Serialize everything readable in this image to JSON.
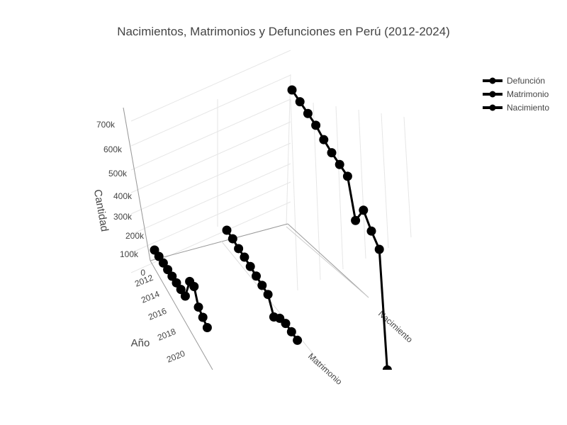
{
  "chart_data": {
    "type": "line",
    "subtype": "3d-scatter-lines",
    "title": "Nacimientos, Matrimonios y Defunciones en Perú (2012-2024)",
    "xlabel": "Año",
    "ylabel": "",
    "zlabel": "Cantidad",
    "x_ticks": [
      "2012",
      "2014",
      "2016",
      "2018",
      "2020"
    ],
    "y_categories": [
      "Matrimonio",
      "Nacimiento"
    ],
    "z_ticks": [
      "0",
      "100k",
      "200k",
      "300k",
      "400k",
      "500k",
      "600k",
      "700k"
    ],
    "zlim": [
      0,
      700000
    ],
    "x": [
      2012,
      2013,
      2014,
      2015,
      2016,
      2017,
      2018,
      2019,
      2020,
      2021,
      2022,
      2023,
      2024
    ],
    "grid": true,
    "legend_position": "top-right",
    "series": [
      {
        "name": "Defunción",
        "category": "Defunción",
        "color": "#000000",
        "values": [
          95000,
          100000,
          104000,
          108000,
          112000,
          116000,
          120000,
          124000,
          210000,
          220000,
          170000,
          160000,
          150000
        ]
      },
      {
        "name": "Matrimonio",
        "category": "Matrimonio",
        "color": "#000000",
        "values": [
          95000,
          97000,
          94000,
          96000,
          95000,
          93000,
          92000,
          92000,
          40000,
          70000,
          85000,
          88000,
          90000
        ]
      },
      {
        "name": "Nacimiento",
        "category": "Nacimiento",
        "color": "#000000",
        "values": [
          620000,
          615000,
          610000,
          605000,
          590000,
          580000,
          575000,
          570000,
          440000,
          520000,
          480000,
          450000,
          25000
        ]
      }
    ]
  }
}
